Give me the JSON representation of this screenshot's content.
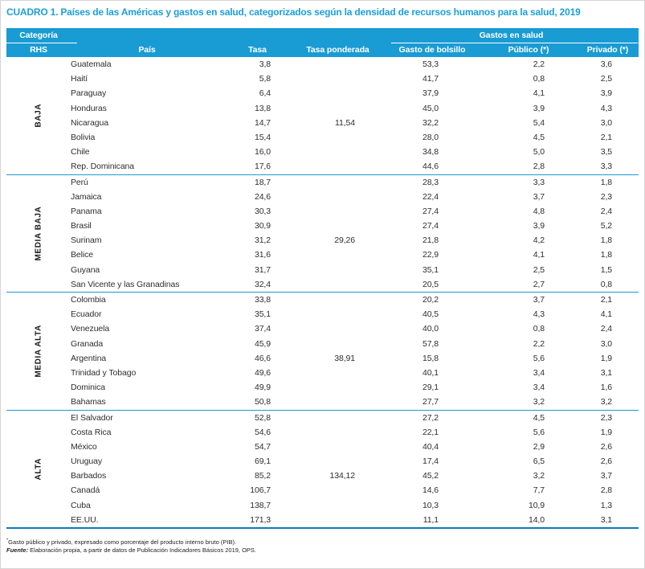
{
  "title": "CUADRO 1. Países de las Américas y gastos en salud, categorizados según la densidad de recursos humanos para la salud, 2019",
  "colors": {
    "header_background": "#199bd4",
    "title_text": "#1d9ed9",
    "group_separator": "#1e99d4",
    "table_bottom_rule": "#0d7cba",
    "body_text": "#2e2e2e"
  },
  "table": {
    "header": {
      "category_top": "Categoría",
      "category_bottom": "RHS",
      "country": "País",
      "rate": "Tasa",
      "weighted_rate": "Tasa ponderada",
      "expenses_group": "Gastos en salud",
      "out_of_pocket": "Gasto de bolsillo",
      "public": "Público (*)",
      "private": "Privado (*)"
    },
    "groups": [
      {
        "label": "BAJA",
        "weighted_rate": "11,54",
        "rows": [
          {
            "country": "Guatemala",
            "rate": "3,8",
            "weighted": "",
            "out_of_pocket": "53,3",
            "public": "2,2",
            "private": "3,6"
          },
          {
            "country": "Haití",
            "rate": "5,8",
            "weighted": "",
            "out_of_pocket": "41,7",
            "public": "0,8",
            "private": "2,5"
          },
          {
            "country": "Paraguay",
            "rate": "6,4",
            "weighted": "",
            "out_of_pocket": "37,9",
            "public": "4,1",
            "private": "3,9"
          },
          {
            "country": "Honduras",
            "rate": "13,8",
            "weighted": "",
            "out_of_pocket": "45,0",
            "public": "3,9",
            "private": "4,3"
          },
          {
            "country": "Nicaragua",
            "rate": "14,7",
            "weighted": "11,54",
            "out_of_pocket": "32,2",
            "public": "5,4",
            "private": "3,0"
          },
          {
            "country": "Bolivia",
            "rate": "15,4",
            "weighted": "",
            "out_of_pocket": "28,0",
            "public": "4,5",
            "private": "2,1"
          },
          {
            "country": "Chile",
            "rate": "16,0",
            "weighted": "",
            "out_of_pocket": "34,8",
            "public": "5,0",
            "private": "3,5"
          },
          {
            "country": "Rep. Dominicana",
            "rate": "17,6",
            "weighted": "",
            "out_of_pocket": "44,6",
            "public": "2,8",
            "private": "3,3"
          }
        ]
      },
      {
        "label": "MEDIA BAJA",
        "weighted_rate": "29,26",
        "rows": [
          {
            "country": "Perú",
            "rate": "18,7",
            "weighted": "",
            "out_of_pocket": "28,3",
            "public": "3,3",
            "private": "1,8"
          },
          {
            "country": "Jamaica",
            "rate": "24,6",
            "weighted": "",
            "out_of_pocket": "22,4",
            "public": "3,7",
            "private": "2,3"
          },
          {
            "country": "Panama",
            "rate": "30,3",
            "weighted": "",
            "out_of_pocket": "27,4",
            "public": "4,8",
            "private": "2,4"
          },
          {
            "country": "Brasil",
            "rate": "30,9",
            "weighted": "",
            "out_of_pocket": "27,4",
            "public": "3,9",
            "private": "5,2"
          },
          {
            "country": "Surinam",
            "rate": "31,2",
            "weighted": "29,26",
            "out_of_pocket": "21,8",
            "public": "4,2",
            "private": "1,8"
          },
          {
            "country": "Belice",
            "rate": "31,6",
            "weighted": "",
            "out_of_pocket": "22,9",
            "public": "4,1",
            "private": "1,8"
          },
          {
            "country": "Guyana",
            "rate": "31,7",
            "weighted": "",
            "out_of_pocket": "35,1",
            "public": "2,5",
            "private": "1,5"
          },
          {
            "country": "San Vicente y las Granadinas",
            "rate": "32,4",
            "weighted": "",
            "out_of_pocket": "20,5",
            "public": "2,7",
            "private": "0,8"
          }
        ]
      },
      {
        "label": "MEDIA ALTA",
        "weighted_rate": "38,91",
        "rows": [
          {
            "country": "Colombia",
            "rate": "33,8",
            "weighted": "",
            "out_of_pocket": "20,2",
            "public": "3,7",
            "private": "2,1"
          },
          {
            "country": "Ecuador",
            "rate": "35,1",
            "weighted": "",
            "out_of_pocket": "40,5",
            "public": "4,3",
            "private": "4,1"
          },
          {
            "country": "Venezuela",
            "rate": "37,4",
            "weighted": "",
            "out_of_pocket": "40,0",
            "public": "0,8",
            "private": "2,4"
          },
          {
            "country": "Granada",
            "rate": "45,9",
            "weighted": "",
            "out_of_pocket": "57,8",
            "public": "2,2",
            "private": "3,0"
          },
          {
            "country": "Argentina",
            "rate": "46,6",
            "weighted": "38,91",
            "out_of_pocket": "15,8",
            "public": "5,6",
            "private": "1,9"
          },
          {
            "country": "Trinidad y Tobago",
            "rate": "49,6",
            "weighted": "",
            "out_of_pocket": "40,1",
            "public": "3,4",
            "private": "3,1"
          },
          {
            "country": "Dominica",
            "rate": "49,9",
            "weighted": "",
            "out_of_pocket": "29,1",
            "public": "3,4",
            "private": "1,6"
          },
          {
            "country": "Bahamas",
            "rate": "50,8",
            "weighted": "",
            "out_of_pocket": "27,7",
            "public": "3,2",
            "private": "3,2"
          }
        ]
      },
      {
        "label": "ALTA",
        "weighted_rate": "134,12",
        "rows": [
          {
            "country": "El Salvador",
            "rate": "52,8",
            "weighted": "",
            "out_of_pocket": "27,2",
            "public": "4,5",
            "private": "2,3"
          },
          {
            "country": "Costa Rica",
            "rate": "54,6",
            "weighted": "",
            "out_of_pocket": "22,1",
            "public": "5,6",
            "private": "1,9"
          },
          {
            "country": "México",
            "rate": "54,7",
            "weighted": "",
            "out_of_pocket": "40,4",
            "public": "2,9",
            "private": "2,6"
          },
          {
            "country": "Uruguay",
            "rate": "69,1",
            "weighted": "",
            "out_of_pocket": "17,4",
            "public": "6,5",
            "private": "2,6"
          },
          {
            "country": "Barbados",
            "rate": "85,2",
            "weighted": "134,12",
            "out_of_pocket": "45,2",
            "public": "3,2",
            "private": "3,7"
          },
          {
            "country": "Canadá",
            "rate": "106,7",
            "weighted": "",
            "out_of_pocket": "14,6",
            "public": "7,7",
            "private": "2,8"
          },
          {
            "country": "Cuba",
            "rate": "138,7",
            "weighted": "",
            "out_of_pocket": "10,3",
            "public": "10,9",
            "private": "1,3"
          },
          {
            "country": "EE.UU.",
            "rate": "171,3",
            "weighted": "",
            "out_of_pocket": "11,1",
            "public": "14,0",
            "private": "3,1"
          }
        ]
      }
    ]
  },
  "footnotes": {
    "mark": "*",
    "note": "Gasto público y privado, expresado como porcentaje del producto interno bruto (PIB).",
    "source_label": "Fuente:",
    "source_text": " Elaboración propia, a partir de datos de Publicación Indicadores Básicos 2019, OPS."
  }
}
